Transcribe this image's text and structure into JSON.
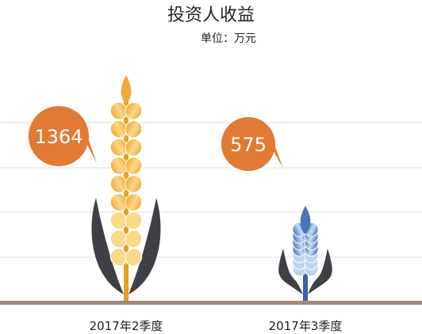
{
  "chart_data": {
    "type": "bar",
    "title": "投资人收益",
    "unit_label": "单位：万元",
    "categories": [
      "2017年2季度",
      "2017年3季度"
    ],
    "values": [
      1364,
      575
    ],
    "value_labels": [
      "1364",
      "575"
    ],
    "ylim": [
      0,
      1500
    ],
    "grid": true,
    "colors": {
      "q2_grain": "#f2a93b",
      "q2_grain_light": "#fbd98a",
      "q2_stem": "#e8a020",
      "q3_grain": "#4a76b3",
      "q3_grain_light": "#bcd4ef",
      "q3_stem": "#3b64a0",
      "bubble": "#e07a35",
      "leaf": "#3f3f46",
      "ground": "#a08a76",
      "grid": "#e2e2e2"
    }
  }
}
